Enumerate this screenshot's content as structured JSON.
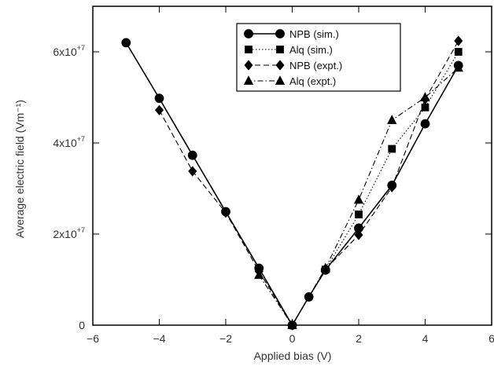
{
  "chart_data": {
    "type": "line",
    "title": "",
    "xlabel": "Applied bias (V)",
    "ylabel": "Average electric field (Vm⁻¹)",
    "xlim": [
      -6,
      6
    ],
    "ylim": [
      0,
      70000000
    ],
    "x_ticks": [
      -6,
      -4,
      -2,
      0,
      2,
      4,
      6
    ],
    "x_tick_labels": [
      "−6",
      "−4",
      "−2",
      "0",
      "2",
      "4",
      "6"
    ],
    "y_ticks": [
      0,
      20000000,
      40000000,
      60000000
    ],
    "y_tick_labels": [
      {
        "base": "0",
        "exp": ""
      },
      {
        "base": "2x10",
        "exp": "+7"
      },
      {
        "base": "4x10",
        "exp": "+7"
      },
      {
        "base": "6x10",
        "exp": "+7"
      }
    ],
    "legend_position": "top-right",
    "series": [
      {
        "name": "NPB (sim.)",
        "marker": "circle",
        "line": "solid",
        "x": [
          -5,
          -4,
          -3,
          -2,
          -1,
          0,
          0.5,
          1,
          2,
          3,
          4,
          5
        ],
        "y": [
          62000000,
          49800000,
          37300000,
          24900000,
          12500000,
          0,
          6200000,
          12100000,
          21300000,
          30700000,
          44200000,
          57000000
        ]
      },
      {
        "name": "Alq (sim.)",
        "marker": "square",
        "line": "dotted",
        "x": [
          1,
          2,
          3,
          4,
          5
        ],
        "y": [
          12200000,
          24300000,
          38700000,
          47800000,
          60000000
        ]
      },
      {
        "name": "NPB (expt.)",
        "marker": "diamond",
        "line": "dashed",
        "x": [
          -4,
          -3,
          -2,
          -1,
          0,
          1,
          2,
          3,
          4,
          5
        ],
        "y": [
          47200000,
          33800000,
          24700000,
          11800000,
          0,
          12300000,
          19800000,
          30300000,
          49600000,
          62400000
        ]
      },
      {
        "name": "Alq (expt.)",
        "marker": "triangle",
        "line": "dashdot",
        "x": [
          -1,
          0,
          1,
          2,
          3,
          4,
          5
        ],
        "y": [
          11000000,
          0,
          12500000,
          27500000,
          45000000,
          50000000,
          56500000
        ]
      }
    ]
  }
}
